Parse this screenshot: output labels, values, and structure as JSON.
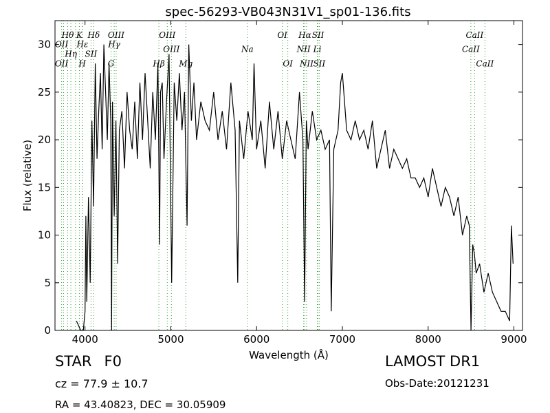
{
  "chart_data": {
    "type": "line",
    "title": "spec-56293-VB043N31V1_sp01-136.fits",
    "xlabel": "Wavelength (Å)",
    "ylabel": "Flux (relative)",
    "xlim": [
      3650,
      9100
    ],
    "ylim": [
      0,
      32.5
    ],
    "xticks": [
      4000,
      5000,
      6000,
      7000,
      8000,
      9000
    ],
    "yticks": [
      0,
      5,
      10,
      15,
      20,
      25,
      30
    ],
    "grid": false,
    "series": [
      {
        "color": "#000000",
        "x": [
          3900,
          3950,
          3980,
          4000,
          4010,
          4020,
          4040,
          4060,
          4080,
          4100,
          4120,
          4140,
          4160,
          4180,
          4200,
          4220,
          4240,
          4260,
          4280,
          4300,
          4310,
          4320,
          4340,
          4360,
          4380,
          4400,
          4430,
          4460,
          4490,
          4520,
          4550,
          4580,
          4610,
          4640,
          4670,
          4700,
          4730,
          4760,
          4790,
          4820,
          4850,
          4870,
          4880,
          4900,
          4920,
          4950,
          4980,
          5010,
          5040,
          5070,
          5100,
          5130,
          5160,
          5190,
          5210,
          5240,
          5270,
          5300,
          5350,
          5400,
          5450,
          5500,
          5550,
          5600,
          5650,
          5700,
          5750,
          5780,
          5800,
          5850,
          5900,
          5950,
          5970,
          6000,
          6050,
          6100,
          6150,
          6200,
          6250,
          6300,
          6350,
          6400,
          6450,
          6500,
          6540,
          6560,
          6580,
          6600,
          6650,
          6700,
          6750,
          6800,
          6850,
          6870,
          6900,
          6950,
          6980,
          7000,
          7050,
          7100,
          7150,
          7200,
          7250,
          7300,
          7350,
          7400,
          7450,
          7500,
          7550,
          7600,
          7650,
          7700,
          7750,
          7800,
          7850,
          7900,
          7950,
          8000,
          8050,
          8100,
          8150,
          8200,
          8250,
          8300,
          8350,
          8400,
          8450,
          8480,
          8500,
          8520,
          8540,
          8560,
          8600,
          8650,
          8700,
          8750,
          8800,
          8850,
          8900,
          8950,
          8970,
          8990
        ],
        "y": [
          1,
          0,
          0,
          2,
          12,
          3,
          14,
          5,
          22,
          13,
          28,
          18,
          23,
          27,
          19,
          30,
          25,
          20,
          28,
          22,
          0,
          24,
          12,
          22,
          7,
          21,
          23,
          17,
          25,
          21,
          19,
          24,
          18,
          26,
          20,
          27,
          22,
          17,
          25,
          20,
          28,
          9,
          25,
          26,
          18,
          24,
          29,
          5,
          26,
          22,
          27,
          21,
          25,
          11,
          30,
          22,
          26,
          20,
          24,
          22,
          21,
          25,
          20,
          23,
          19,
          26,
          21,
          5,
          22,
          18,
          23,
          20,
          28,
          19,
          22,
          17,
          24,
          19,
          23,
          18,
          22,
          20,
          18,
          25,
          20,
          3,
          22,
          19,
          23,
          20,
          21,
          19,
          20,
          2,
          19,
          21,
          26,
          27,
          21,
          20,
          22,
          20,
          21,
          19,
          22,
          17,
          19,
          21,
          17,
          19,
          18,
          17,
          18,
          16,
          16,
          15,
          16,
          14,
          17,
          15,
          13,
          15,
          14,
          12,
          14,
          10,
          12,
          11,
          0,
          9,
          8,
          6,
          7,
          4,
          6,
          4,
          3,
          2,
          2,
          1,
          11,
          7
        ]
      }
    ],
    "annotations": [
      {
        "text": "Hθ",
        "x": 3798,
        "y": 31,
        "top": true
      },
      {
        "text": "K",
        "x": 3934,
        "y": 31,
        "top": true
      },
      {
        "text": "Hδ",
        "x": 4102,
        "y": 31,
        "top": true
      },
      {
        "text": "OIII",
        "x": 4363,
        "y": 31,
        "top": true
      },
      {
        "text": "OII",
        "x": 3727,
        "y": 30,
        "top": true
      },
      {
        "text": "Hε",
        "x": 3970,
        "y": 30,
        "top": true
      },
      {
        "text": "Hγ",
        "x": 4340,
        "y": 30,
        "top": true
      },
      {
        "text": "Hη",
        "x": 3835,
        "y": 29,
        "top": true
      },
      {
        "text": "SII",
        "x": 4070,
        "y": 29,
        "top": true
      },
      {
        "text": "OIII",
        "x": 4959,
        "y": 31,
        "top": true
      },
      {
        "text": "OIII",
        "x": 5007,
        "y": 29.5,
        "top": true
      },
      {
        "text": "Hβ",
        "x": 4861,
        "y": 28,
        "top": true
      },
      {
        "text": "Mg",
        "x": 5175,
        "y": 28,
        "top": true
      },
      {
        "text": "Na",
        "x": 5893,
        "y": 29.5,
        "top": true
      },
      {
        "text": "OI",
        "x": 6300,
        "y": 31,
        "top": true
      },
      {
        "text": "OI",
        "x": 6364,
        "y": 28,
        "top": true
      },
      {
        "text": "Hα",
        "x": 6563,
        "y": 31,
        "top": true
      },
      {
        "text": "SII",
        "x": 6716,
        "y": 31,
        "top": true
      },
      {
        "text": "NII",
        "x": 6548,
        "y": 29.5,
        "top": true
      },
      {
        "text": "Li",
        "x": 6708,
        "y": 29.5,
        "top": true
      },
      {
        "text": "NII",
        "x": 6583,
        "y": 28,
        "top": true
      },
      {
        "text": "SII",
        "x": 6731,
        "y": 28,
        "top": true
      },
      {
        "text": "CaII",
        "x": 8542,
        "y": 31,
        "top": true
      },
      {
        "text": "CaII",
        "x": 8498,
        "y": 29.5,
        "top": true
      },
      {
        "text": "CaII",
        "x": 8662,
        "y": 28,
        "top": true
      },
      {
        "text": "OII",
        "x": 3727,
        "y": 28,
        "top": true
      },
      {
        "text": "G",
        "x": 4304,
        "y": 28,
        "top": true
      },
      {
        "text": "H",
        "x": 3968,
        "y": 28,
        "top": true
      }
    ],
    "line_marks": [
      3727,
      3750,
      3798,
      3835,
      3889,
      3934,
      3968,
      3970,
      4070,
      4102,
      4304,
      4340,
      4363,
      4861,
      4959,
      5007,
      5175,
      5893,
      6300,
      6364,
      6548,
      6563,
      6583,
      6708,
      6716,
      6731,
      8498,
      8542,
      8662
    ],
    "line_mark_color": "#2ca02c"
  },
  "info": {
    "object_class": "STAR",
    "subclass": "F0",
    "redshift": "cz = 77.9 ± 10.7",
    "coords": "RA = 43.40823, DEC = 30.05909",
    "survey": "LAMOST DR1",
    "obs_date": "Obs-Date:20121231"
  }
}
